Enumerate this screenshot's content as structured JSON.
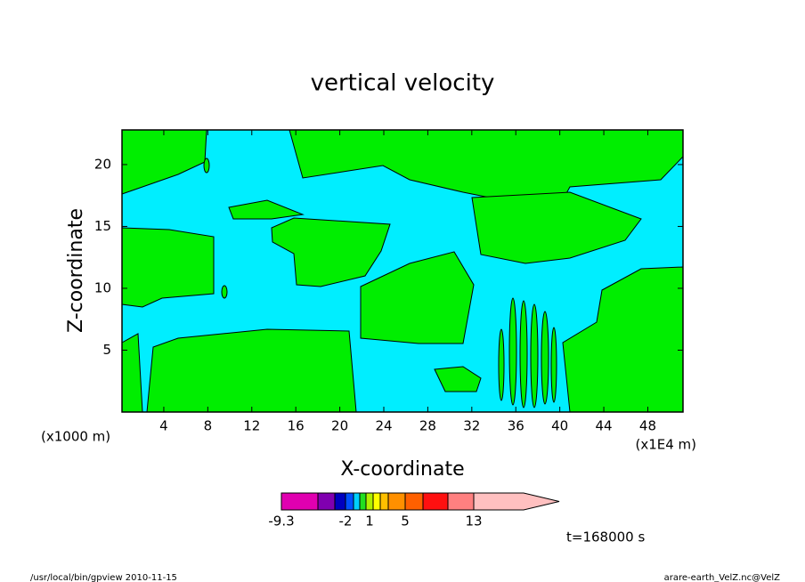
{
  "chart_data": {
    "type": "contour",
    "title": "vertical velocity",
    "xlabel": "X-coordinate",
    "ylabel": "Z-coordinate",
    "x_unit_left": "(x1000 m)",
    "x_unit_right": "(x1E4 m)",
    "xlim": [
      0.2,
      51.2
    ],
    "xticks": [
      4,
      8,
      12,
      16,
      20,
      24,
      28,
      32,
      36,
      40,
      44,
      48
    ],
    "ylim": [
      0,
      22.8
    ],
    "yticks": [
      5,
      10,
      15,
      20
    ],
    "colorbar": {
      "colors": [
        "#e000b0",
        "#8000b0",
        "#0000c0",
        "#0050ff",
        "#00d0ff",
        "#20e020",
        "#b0f000",
        "#ffff00",
        "#ffc000",
        "#ff9000",
        "#ff6000",
        "#ff1010",
        "#ff8080",
        "#ffc0c0"
      ],
      "labels": [
        "-9.3",
        "-2",
        "1",
        "5",
        "13"
      ]
    },
    "time_label": "t=168000 s",
    "footer_left": "/usr/local/bin/gpview  2010-11-15",
    "footer_right": "arare-earth_VelZ.nc@VelZ"
  }
}
